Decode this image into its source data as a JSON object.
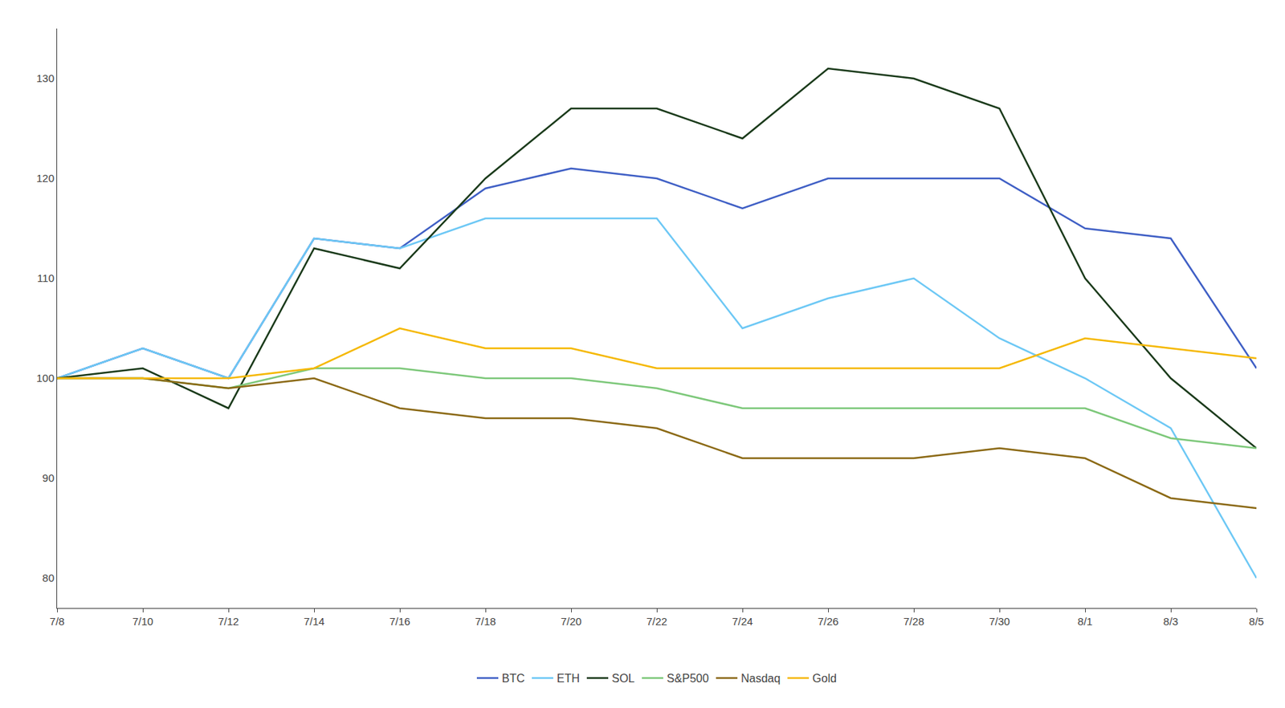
{
  "chart_data": {
    "type": "line",
    "categories": [
      "7/8",
      "7/10",
      "7/12",
      "7/14",
      "7/16",
      "7/18",
      "7/20",
      "7/22",
      "7/24",
      "7/26",
      "7/28",
      "7/30",
      "8/1",
      "8/3",
      "8/5"
    ],
    "series": [
      {
        "name": "BTC",
        "color": "#3f5fc5",
        "values": [
          100,
          103,
          100,
          114,
          113,
          119,
          121,
          120,
          117,
          120,
          120,
          120,
          115,
          114,
          101
        ]
      },
      {
        "name": "ETH",
        "color": "#6dc8f5",
        "values": [
          100,
          103,
          100,
          114,
          113,
          116,
          116,
          116,
          105,
          108,
          110,
          104,
          100,
          95,
          80
        ]
      },
      {
        "name": "SOL",
        "color": "#1a3a1a",
        "values": [
          100,
          101,
          97,
          113,
          111,
          120,
          127,
          127,
          124,
          131,
          130,
          127,
          110,
          100,
          93
        ]
      },
      {
        "name": "S&P500",
        "color": "#7dc87a",
        "values": [
          100,
          100,
          99,
          101,
          101,
          100,
          100,
          99,
          97,
          97,
          97,
          97,
          97,
          94,
          93
        ]
      },
      {
        "name": "Nasdaq",
        "color": "#8b6914",
        "values": [
          100,
          100,
          99,
          100,
          97,
          96,
          96,
          95,
          92,
          92,
          92,
          93,
          92,
          88,
          87
        ]
      },
      {
        "name": "Gold",
        "color": "#f5b800",
        "values": [
          100,
          100,
          100,
          101,
          105,
          103,
          103,
          101,
          101,
          101,
          101,
          101,
          104,
          103,
          102
        ]
      }
    ],
    "ylim": [
      77,
      135
    ],
    "yticks": [
      80,
      90,
      100,
      110,
      120,
      130
    ],
    "grid": false,
    "legend": "bottom"
  }
}
